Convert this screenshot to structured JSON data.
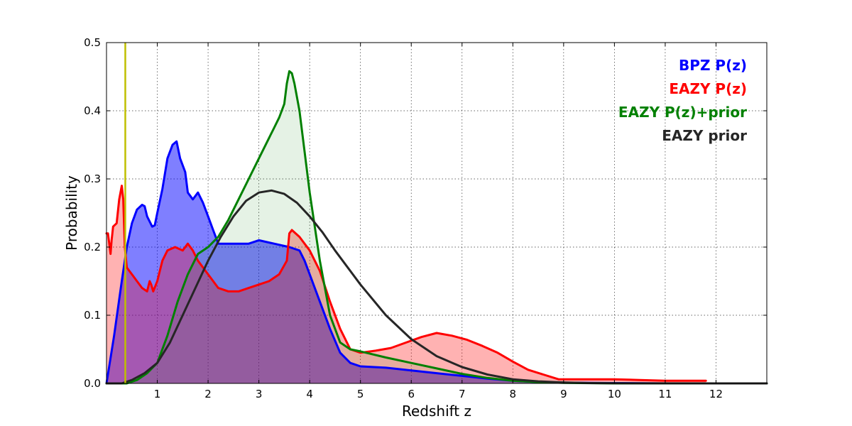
{
  "chart_data": {
    "type": "line",
    "xlabel": "Redshift z",
    "ylabel": "Probability",
    "xlim": [
      0,
      13
    ],
    "ylim": [
      0,
      0.5
    ],
    "xticks": [
      "1",
      "2",
      "3",
      "4",
      "5",
      "6",
      "7",
      "8",
      "9",
      "10",
      "11",
      "12"
    ],
    "yticks": [
      "0.0",
      "0.1",
      "0.2",
      "0.3",
      "0.4",
      "0.5"
    ],
    "grid": true,
    "legend_placement": "top-right",
    "vertical_line": {
      "x": 0.37,
      "color": "#bfbf00"
    },
    "series": [
      {
        "name": "BPZ P(z)",
        "color": "#0000ff",
        "fill": "#0000ff",
        "fill_opacity": 0.5,
        "x": [
          0.0,
          0.15,
          0.3,
          0.4,
          0.5,
          0.6,
          0.7,
          0.75,
          0.8,
          0.9,
          0.95,
          1.0,
          1.1,
          1.2,
          1.3,
          1.38,
          1.45,
          1.55,
          1.6,
          1.7,
          1.8,
          1.9,
          2.0,
          2.1,
          2.2,
          2.3,
          2.5,
          2.8,
          3.0,
          3.3,
          3.6,
          3.8,
          3.9,
          4.0,
          4.2,
          4.4,
          4.6,
          4.8,
          5.0,
          5.5,
          6.0,
          6.5,
          7.0,
          7.5,
          8.0,
          8.5,
          9.0,
          10.0,
          11.0,
          12.0,
          13.0
        ],
        "y": [
          0.0,
          0.07,
          0.15,
          0.2,
          0.235,
          0.255,
          0.262,
          0.26,
          0.245,
          0.23,
          0.232,
          0.25,
          0.285,
          0.33,
          0.35,
          0.355,
          0.33,
          0.31,
          0.28,
          0.27,
          0.28,
          0.265,
          0.245,
          0.225,
          0.205,
          0.205,
          0.205,
          0.205,
          0.21,
          0.205,
          0.2,
          0.195,
          0.18,
          0.16,
          0.12,
          0.08,
          0.045,
          0.03,
          0.025,
          0.023,
          0.019,
          0.015,
          0.011,
          0.007,
          0.004,
          0.002,
          0.001,
          0.0005,
          0.0,
          0.0,
          0.0
        ]
      },
      {
        "name": "EAZY P(z)",
        "color": "#ff0000",
        "fill": "#ff0000",
        "fill_opacity": 0.3,
        "x": [
          0.0,
          0.03,
          0.08,
          0.1,
          0.13,
          0.2,
          0.25,
          0.3,
          0.33,
          0.36,
          0.4,
          0.5,
          0.6,
          0.7,
          0.8,
          0.85,
          0.88,
          0.92,
          1.0,
          1.1,
          1.2,
          1.35,
          1.5,
          1.6,
          1.7,
          1.8,
          2.0,
          2.2,
          2.4,
          2.6,
          2.8,
          3.0,
          3.2,
          3.4,
          3.55,
          3.6,
          3.65,
          3.8,
          4.0,
          4.2,
          4.4,
          4.6,
          4.8,
          5.0,
          5.3,
          5.6,
          5.9,
          6.2,
          6.5,
          6.8,
          7.1,
          7.4,
          7.7,
          8.0,
          8.3,
          8.6,
          8.9,
          9.5,
          10.0,
          10.5,
          11.0,
          11.5,
          11.8
        ],
        "y": [
          0.22,
          0.22,
          0.19,
          0.21,
          0.23,
          0.235,
          0.27,
          0.29,
          0.27,
          0.2,
          0.17,
          0.16,
          0.15,
          0.14,
          0.135,
          0.15,
          0.145,
          0.135,
          0.15,
          0.18,
          0.195,
          0.2,
          0.195,
          0.205,
          0.195,
          0.18,
          0.16,
          0.14,
          0.135,
          0.135,
          0.14,
          0.145,
          0.15,
          0.16,
          0.18,
          0.22,
          0.225,
          0.215,
          0.195,
          0.165,
          0.12,
          0.08,
          0.05,
          0.045,
          0.048,
          0.052,
          0.06,
          0.068,
          0.074,
          0.07,
          0.064,
          0.055,
          0.045,
          0.032,
          0.02,
          0.013,
          0.006,
          0.006,
          0.006,
          0.005,
          0.004,
          0.004,
          0.004
        ]
      },
      {
        "name": "EAZY P(z)+prior",
        "color": "#008000",
        "fill": "#008000",
        "fill_opacity": 0.1,
        "x": [
          0.0,
          0.4,
          0.6,
          0.8,
          1.0,
          1.2,
          1.4,
          1.6,
          1.8,
          2.0,
          2.2,
          2.4,
          2.6,
          2.8,
          3.0,
          3.2,
          3.3,
          3.4,
          3.45,
          3.5,
          3.55,
          3.6,
          3.65,
          3.7,
          3.8,
          3.9,
          4.0,
          4.2,
          4.4,
          4.6,
          4.8,
          5.0,
          5.5,
          6.0,
          6.5,
          7.0,
          7.5,
          8.0,
          8.5,
          9.0,
          10.0,
          11.0,
          13.0
        ],
        "y": [
          0.0,
          0.0,
          0.005,
          0.015,
          0.03,
          0.07,
          0.12,
          0.16,
          0.19,
          0.2,
          0.215,
          0.24,
          0.27,
          0.3,
          0.33,
          0.36,
          0.375,
          0.39,
          0.4,
          0.41,
          0.44,
          0.458,
          0.455,
          0.44,
          0.4,
          0.34,
          0.28,
          0.18,
          0.1,
          0.06,
          0.05,
          0.047,
          0.038,
          0.03,
          0.022,
          0.014,
          0.008,
          0.004,
          0.002,
          0.0008,
          0.0,
          0.0,
          0.0
        ]
      },
      {
        "name": "EAZY prior",
        "color": "#262626",
        "fill": null,
        "fill_opacity": 0,
        "x": [
          0.0,
          0.3,
          0.5,
          0.75,
          1.0,
          1.25,
          1.5,
          1.75,
          2.0,
          2.25,
          2.5,
          2.75,
          3.0,
          3.25,
          3.5,
          3.75,
          4.0,
          4.25,
          4.5,
          4.75,
          5.0,
          5.5,
          6.0,
          6.5,
          7.0,
          7.5,
          8.0,
          8.5,
          9.0,
          9.5,
          10.0,
          13.0
        ],
        "y": [
          0.0,
          0.0,
          0.005,
          0.015,
          0.03,
          0.06,
          0.1,
          0.14,
          0.18,
          0.215,
          0.245,
          0.268,
          0.28,
          0.283,
          0.278,
          0.265,
          0.245,
          0.222,
          0.195,
          0.17,
          0.145,
          0.1,
          0.065,
          0.04,
          0.024,
          0.013,
          0.006,
          0.003,
          0.0015,
          0.0005,
          0.0002,
          0.0
        ]
      }
    ]
  }
}
